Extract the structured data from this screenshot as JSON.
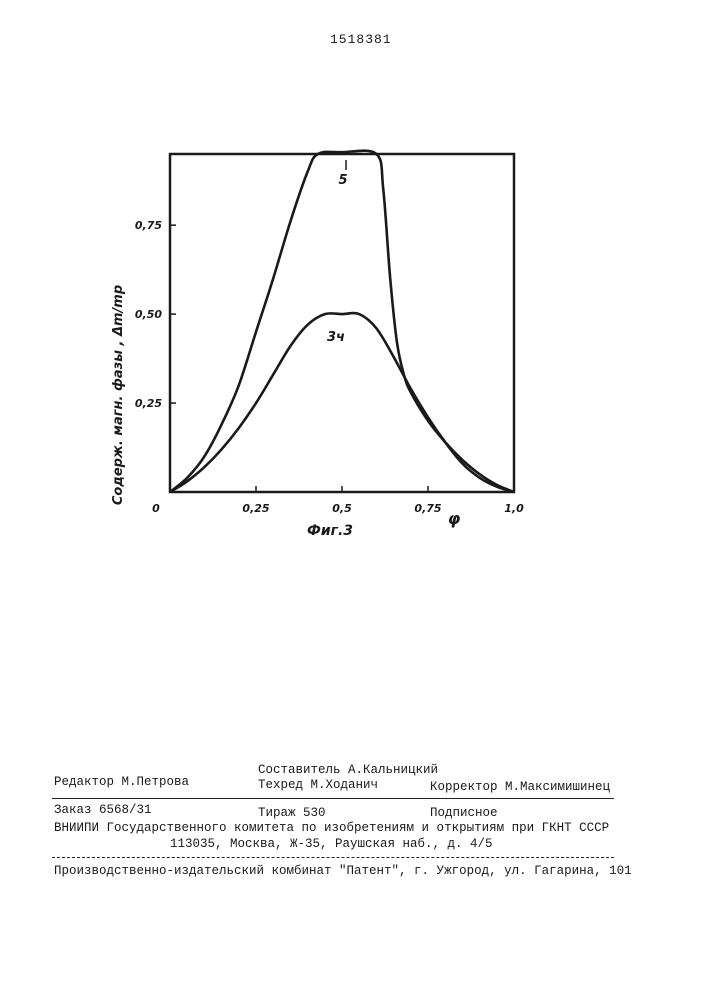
{
  "header": {
    "patent_number": "1518381"
  },
  "chart_data": {
    "type": "line",
    "ylabel": "Содерж. магн. фазы , Δm/mр",
    "xlabel": "φ",
    "caption": "Фиг.3",
    "x_ticks": [
      "0",
      "0,25",
      "0,5",
      "0,75",
      "1,0"
    ],
    "y_ticks": [
      "0,25",
      "0,50",
      "0,75"
    ],
    "xlim": [
      0,
      1.0
    ],
    "ylim": [
      0,
      0.95
    ],
    "series": [
      {
        "name": "5",
        "x": [
          0,
          0.05,
          0.1,
          0.15,
          0.2,
          0.25,
          0.3,
          0.35,
          0.4,
          0.43,
          0.5,
          0.6,
          0.62,
          0.64,
          0.66,
          0.68,
          0.7,
          0.75,
          0.8,
          0.85,
          0.9,
          0.95,
          1.0
        ],
        "y": [
          0,
          0.04,
          0.1,
          0.19,
          0.3,
          0.45,
          0.6,
          0.76,
          0.9,
          0.95,
          0.955,
          0.95,
          0.85,
          0.6,
          0.42,
          0.33,
          0.28,
          0.2,
          0.14,
          0.09,
          0.05,
          0.02,
          0
        ]
      },
      {
        "name": "3ч",
        "x": [
          0,
          0.05,
          0.1,
          0.15,
          0.2,
          0.25,
          0.3,
          0.35,
          0.4,
          0.45,
          0.5,
          0.55,
          0.6,
          0.65,
          0.7,
          0.75,
          0.8,
          0.85,
          0.9,
          0.95,
          1.0
        ],
        "y": [
          0,
          0.03,
          0.07,
          0.12,
          0.18,
          0.25,
          0.33,
          0.41,
          0.47,
          0.5,
          0.5,
          0.5,
          0.46,
          0.38,
          0.29,
          0.21,
          0.14,
          0.08,
          0.04,
          0.015,
          0
        ]
      }
    ],
    "annotations": [
      "5",
      "3ч"
    ]
  },
  "colophon": {
    "compiler": "Составитель А.Кальницкий",
    "editor": "Редактор М.Петрова",
    "techred": "Техред М.Ходанич",
    "corrector": "Корректор М.Максимишинец",
    "order": "Заказ 6568/31",
    "circulation": "Тираж 530",
    "subscription": "Подписное",
    "institute": "ВНИИПИ Государственного комитета по изобретениям и открытиям при ГКНТ СССР",
    "address": "113035, Москва, Ж-35, Раушская наб., д. 4/5",
    "publisher": "Производственно-издательский комбинат \"Патент\", г. Ужгород, ул. Гагарина, 101"
  }
}
